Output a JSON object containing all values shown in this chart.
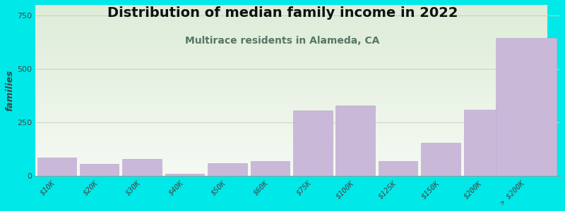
{
  "title": "Distribution of median family income in 2022",
  "subtitle": "Multirace residents in Alameda, CA",
  "categories": [
    "$10K",
    "$20K",
    "$30K",
    "$40K",
    "$50K",
    "$60K",
    "$75K",
    "$100K",
    "$125K",
    "$150K",
    "$200K",
    "> $200K"
  ],
  "values": [
    85,
    55,
    80,
    10,
    60,
    70,
    305,
    330,
    70,
    155,
    310,
    645
  ],
  "bar_color": "#c9b8d8",
  "bar_edge_color": "#c0aed0",
  "background_color": "#00e8e8",
  "plot_bg_gradient_top": "#deecd8",
  "plot_bg_gradient_bottom": "#f5faf3",
  "ylabel": "families",
  "ylim": [
    0,
    800
  ],
  "yticks": [
    0,
    250,
    500,
    750
  ],
  "title_fontsize": 14,
  "subtitle_fontsize": 10,
  "subtitle_color": "#557766",
  "title_color": "#111111",
  "ylabel_color": "#444444",
  "tick_color": "#444444",
  "grid_color": "#cccccc",
  "last_bar_extends": true
}
